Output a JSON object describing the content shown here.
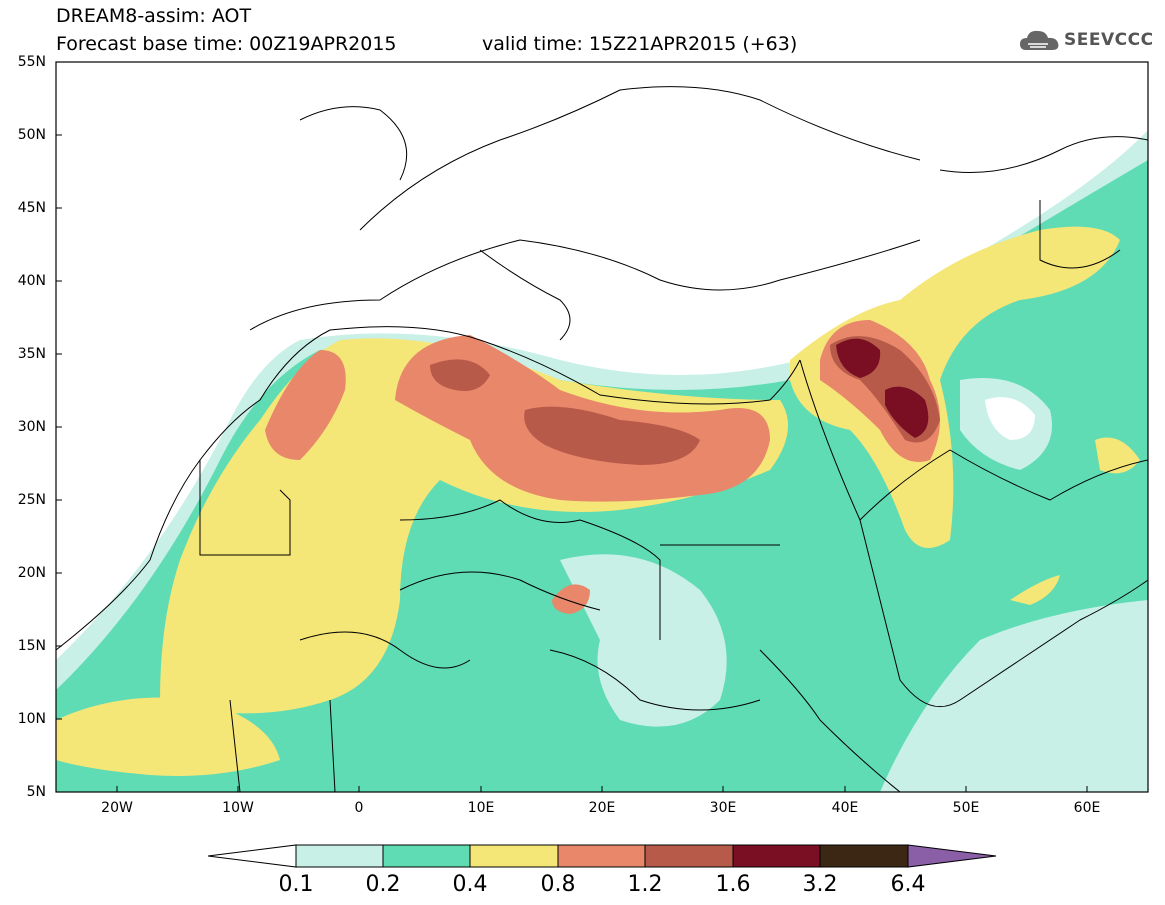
{
  "header": {
    "title_line1": "DREAM8-assim: AOT",
    "base_time": "Forecast base time: 00Z19APR2015",
    "valid_time": "valid time: 15Z21APR2015 (+63)",
    "logo_text": "SEEVCCC"
  },
  "axes": {
    "lat_labels": [
      "55N",
      "50N",
      "45N",
      "40N",
      "35N",
      "30N",
      "25N",
      "20N",
      "15N",
      "10N",
      "5N"
    ],
    "lon_labels": [
      "20W",
      "10W",
      "0",
      "10E",
      "20E",
      "30E",
      "40E",
      "50E",
      "60E"
    ]
  },
  "colorbar": {
    "labels": [
      "0.1",
      "0.2",
      "0.4",
      "0.8",
      "1.2",
      "1.6",
      "3.2",
      "6.4"
    ],
    "colors": [
      "#ffffff",
      "#c8f0e6",
      "#5fdcb4",
      "#f5e678",
      "#e8876a",
      "#b85a4a",
      "#7a0f23",
      "#3c2614",
      "#8a5fa8"
    ]
  },
  "map": {
    "extent_lon": [
      -25,
      65
    ],
    "extent_lat": [
      5,
      55
    ],
    "variable": "AOT",
    "shading_colors": {
      "c1": "#c8f0e6",
      "c2": "#5fdcb4",
      "c3": "#f5e678",
      "c4": "#e8876a",
      "c5": "#b85a4a",
      "c6": "#7a0f23"
    }
  }
}
